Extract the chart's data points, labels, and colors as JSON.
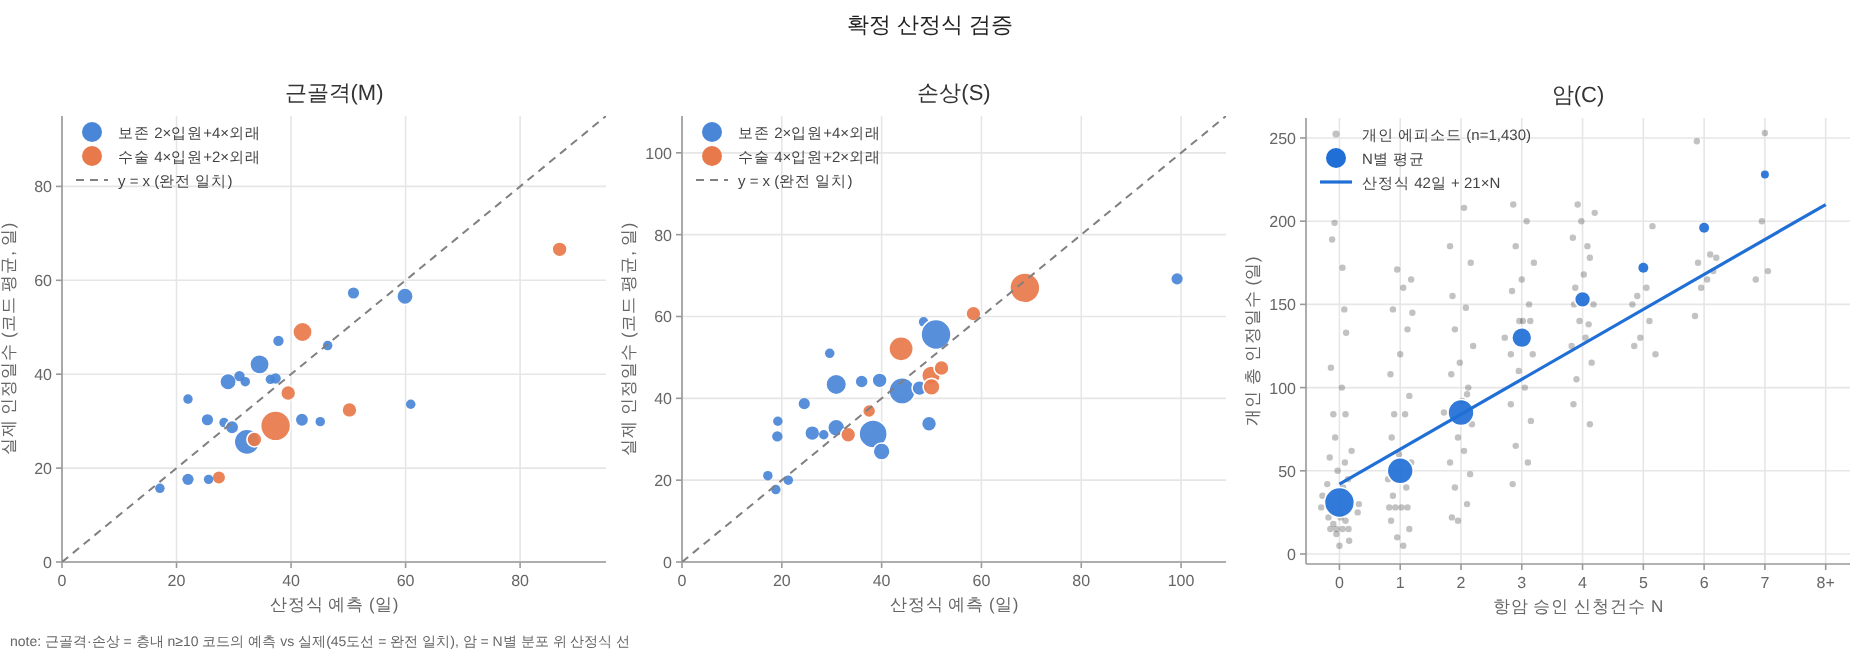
{
  "chart_data": [
    {
      "type": "bubble",
      "title": "근골격(M)",
      "xlabel": "산정식 예측 (일)",
      "ylabel": "실제 인정일수 (코드 평균, 일)",
      "xlim": [
        0,
        95
      ],
      "ylim": [
        0,
        95
      ],
      "xticks": [
        0,
        20,
        40,
        60,
        80
      ],
      "yticks": [
        0,
        20,
        40,
        60,
        80
      ],
      "grid": true,
      "legend": "top left",
      "marker": "circle",
      "annotations": [
        "확정 산정식 검증",
        "note: 근골격·손상 = 층내 n≥10 코드의 예측 vs 실제(45도선 = 완전 일치), 암 = N별 분포 위 산정식 선"
      ],
      "series": [
        {
          "name": "보존 2×입원+4×외래",
          "color": "#4a86d8",
          "x": [
            17.1,
            22,
            22,
            25.4,
            25.6,
            28.3,
            29,
            29.7,
            31,
            32,
            32.3,
            34.5,
            36.4,
            37.3,
            37.8,
            41.9,
            45.1,
            46.4,
            50.9,
            59.9,
            60.9
          ],
          "values": [
            15.7,
            34.7,
            17.6,
            30.3,
            17.6,
            29.7,
            38.4,
            28.7,
            39.6,
            38.4,
            25.6,
            42.1,
            38.9,
            39.1,
            47.1,
            30.3,
            29.9,
            46.1,
            57.3,
            56.6,
            33.6
          ],
          "sizes": [
            0.1,
            0.1,
            0.14,
            0.14,
            0.1,
            0.1,
            0.3,
            0.2,
            0.12,
            0.1,
            0.72,
            0.42,
            0.1,
            0.12,
            0.12,
            0.2,
            0.1,
            0.1,
            0.14,
            0.3,
            0.1
          ]
        },
        {
          "name": "수술 4×입원+2×외래",
          "color": "#e8794a",
          "x": [
            27.4,
            33.6,
            37.3,
            39.5,
            42,
            50.2,
            86.9
          ],
          "values": [
            18,
            26.1,
            29,
            36,
            49,
            32.4,
            66.6
          ],
          "sizes": [
            0.16,
            0.25,
            1,
            0.25,
            0.42,
            0.25,
            0.25
          ]
        },
        {
          "name": "y = x (완전 일치)",
          "type": "line",
          "color": "#808080",
          "line_style": "dashed",
          "marker": "none",
          "x": [
            0,
            95
          ],
          "values": [
            0,
            95
          ]
        }
      ]
    },
    {
      "type": "bubble",
      "title": "손상(S)",
      "xlabel": "산정식 예측 (일)",
      "ylabel": "실제 인정일수 (코드 평균, 일)",
      "xlim": [
        0,
        109
      ],
      "ylim": [
        0,
        109
      ],
      "xticks": [
        0,
        20,
        40,
        60,
        80,
        100
      ],
      "yticks": [
        0,
        20,
        40,
        60,
        80,
        100
      ],
      "grid": true,
      "legend": "top left",
      "marker": "circle",
      "series": [
        {
          "name": "보존 2×입원+4×외래",
          "color": "#4a86d8",
          "x": [
            17.2,
            18.8,
            19.1,
            19.2,
            21.3,
            24.5,
            26.1,
            28.4,
            29.6,
            30.9,
            30.9,
            36,
            38.3,
            39.6,
            40,
            44.1,
            47.6,
            48.4,
            49.5,
            50.9,
            99.2
          ],
          "values": [
            21.1,
            17.7,
            30.7,
            34.4,
            20,
            38.7,
            31.5,
            31.1,
            51,
            43.4,
            32.8,
            44.1,
            31.3,
            44.4,
            27,
            41.8,
            42.5,
            58.7,
            33.8,
            55.6,
            69.2
          ],
          "sizes": [
            0.1,
            0.1,
            0.12,
            0.1,
            0.1,
            0.14,
            0.25,
            0.1,
            0.1,
            0.47,
            0.32,
            0.19,
            0.88,
            0.25,
            0.32,
            0.77,
            0.25,
            0.1,
            0.25,
            1,
            0.14
          ]
        },
        {
          "name": "수술 4×입원+2×외래",
          "color": "#e8794a",
          "x": [
            33.3,
            37.5,
            43.9,
            49.9,
            50,
            52,
            58.4,
            68.7
          ],
          "values": [
            31.1,
            36.9,
            52.1,
            45.6,
            42.8,
            47.4,
            60.7,
            67
          ],
          "sizes": [
            0.25,
            0.19,
            0.66,
            0.39,
            0.32,
            0.25,
            0.25,
            1
          ]
        },
        {
          "name": "y = x (완전 일치)",
          "type": "line",
          "color": "#808080",
          "line_style": "dashed",
          "marker": "none",
          "x": [
            0,
            109
          ],
          "values": [
            0,
            109
          ]
        }
      ]
    },
    {
      "type": "scatter",
      "title": "암(C)",
      "xlabel": "항암 승인 신청건수 N",
      "ylabel": "개인 총 인정일수 (일)",
      "xlim": [
        -0.55,
        8.4
      ],
      "ylim": [
        -6,
        262
      ],
      "xticks": [
        0,
        1,
        2,
        3,
        4,
        5,
        6,
        7,
        {
          "value": 8,
          "label": "8+"
        }
      ],
      "yticks": [
        0,
        50,
        100,
        150,
        200,
        250
      ],
      "grid": true,
      "legend": "top left",
      "marker": "circle",
      "series": [
        {
          "name": "개인 에피소드 (n=1,430)",
          "color": "#505050",
          "x": [
            -0.15,
            -0.05,
            0.05,
            0.15,
            -0.1,
            0.1,
            -0.18,
            0.02,
            0.3,
            -0.3,
            0.32,
            -0.28,
            0.06,
            -0.2,
            0.14,
            -0.03,
            0.09,
            -0.16,
            0.2,
            -0.07,
            -0.1,
            0.1,
            0.04,
            -0.14,
            0.11,
            0.08,
            0.05,
            -0.12,
            -0.08,
            0.0,
            0.16,
            -0.05,
            0.82,
            0.92,
            1.02,
            1.12,
            0.85,
            1.15,
            0.95,
            1.05,
            0.88,
            1.1,
            0.8,
            1.18,
            0.98,
            0.86,
            1.08,
            0.9,
            1.15,
            0.84,
            1.0,
            1.12,
            0.88,
            1.05,
            1.18,
            0.95,
            1.2,
            1.85,
            2.1,
            1.9,
            2.15,
            1.82,
            2.05,
            1.95,
            2.18,
            1.72,
            2.02,
            2.12,
            1.84,
            1.98,
            2.2,
            1.9,
            2.08,
            1.86,
            2.16,
            1.82,
            2.05,
            1.95,
            2.1,
            2.85,
            3.1,
            2.9,
            3.15,
            2.82,
            3.05,
            2.95,
            3.18,
            2.72,
            3.02,
            3.12,
            2.84,
            3.0,
            3.2,
            2.9,
            3.08,
            2.86,
            3.14,
            2.96,
            2.82,
            3.85,
            4.12,
            3.9,
            4.15,
            3.82,
            4.05,
            3.95,
            4.18,
            3.88,
            4.02,
            4.12,
            3.84,
            3.98,
            4.2,
            3.92,
            4.08,
            3.86,
            4.1,
            4.85,
            4.95,
            5.1,
            5.2,
            4.9,
            5.05,
            5.15,
            4.82,
            5.85,
            5.95,
            6.05,
            6.15,
            5.9,
            6.1,
            6.2,
            5.88,
            6.85,
            6.95,
            7.05,
            7.0
          ],
          "values": [
            15,
            15,
            15,
            15,
            18,
            20,
            22,
            22,
            25,
            28,
            30,
            35,
            40,
            42,
            45,
            50,
            55,
            58,
            62,
            70,
            84,
            84,
            100,
            112,
            133,
            147,
            172,
            189,
            199,
            5,
            8,
            12,
            28,
            28,
            28,
            28,
            20,
            15,
            10,
            5,
            35,
            40,
            45,
            55,
            60,
            70,
            84,
            84,
            95,
            108,
            120,
            135,
            147,
            160,
            165,
            171,
            145,
            22,
            30,
            40,
            48,
            55,
            62,
            70,
            78,
            85,
            92,
            100,
            108,
            115,
            125,
            135,
            148,
            155,
            175,
            185,
            208,
            20,
            96,
            42,
            55,
            65,
            80,
            90,
            100,
            110,
            120,
            130,
            140,
            150,
            158,
            165,
            175,
            185,
            200,
            210,
            140,
            140,
            120,
            90,
            78,
            105,
            115,
            125,
            130,
            140,
            150,
            160,
            168,
            178,
            190,
            200,
            205,
            210,
            185,
            150,
            138,
            125,
            130,
            140,
            120,
            155,
            160,
            197,
            150,
            143,
            160,
            165,
            170,
            175,
            180,
            178,
            248,
            165,
            200,
            170,
            253
          ]
        },
        {
          "name": "N별 평균",
          "type": "bubble",
          "color": "#1f6fd6",
          "x": [
            0,
            1,
            2,
            3,
            4,
            5,
            6,
            7
          ],
          "values": [
            31,
            50,
            85,
            130,
            153,
            172,
            196,
            228
          ],
          "sizes": [
            1,
            0.75,
            0.75,
            0.44,
            0.28,
            0.11,
            0.11,
            0.07
          ]
        },
        {
          "name": "산정식 42일 + 21×N",
          "type": "line",
          "color": "#1f6fd6",
          "line_style": "solid",
          "marker": "none",
          "x": [
            0,
            8
          ],
          "values": [
            42,
            210
          ]
        }
      ]
    }
  ]
}
